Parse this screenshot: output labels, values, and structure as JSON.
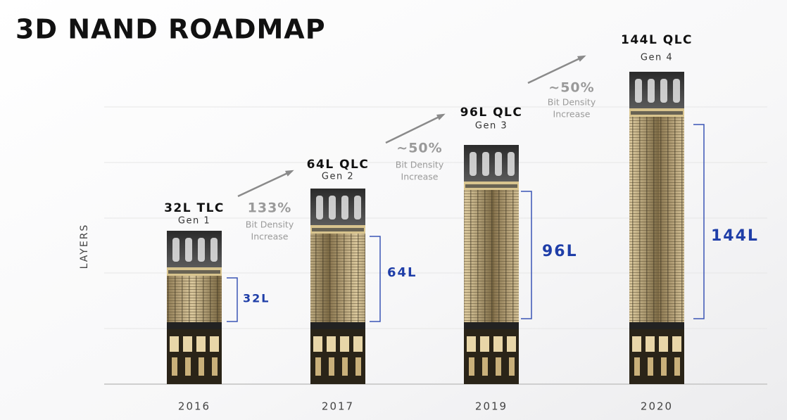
{
  "title": "3D NAND ROADMAP",
  "axis_label": "LAYERS",
  "columns": [
    {
      "name": "32L TLC",
      "gen": "Gen 1",
      "year": "2016",
      "layers": "32L"
    },
    {
      "name": "64L QLC",
      "gen": "Gen 2",
      "year": "2017",
      "layers": "64L"
    },
    {
      "name": "96L QLC",
      "gen": "Gen 3",
      "year": "2019",
      "layers": "96L"
    },
    {
      "name": "144L QLC",
      "gen": "Gen 4",
      "year": "2020",
      "layers": "144L"
    }
  ],
  "increases": [
    {
      "percent": "133%",
      "line1": "Bit Density",
      "line2": "Increase"
    },
    {
      "percent": "~50%",
      "line1": "Bit Density",
      "line2": "Increase"
    },
    {
      "percent": "~50%",
      "line1": "Bit Density",
      "line2": "Increase"
    }
  ]
}
